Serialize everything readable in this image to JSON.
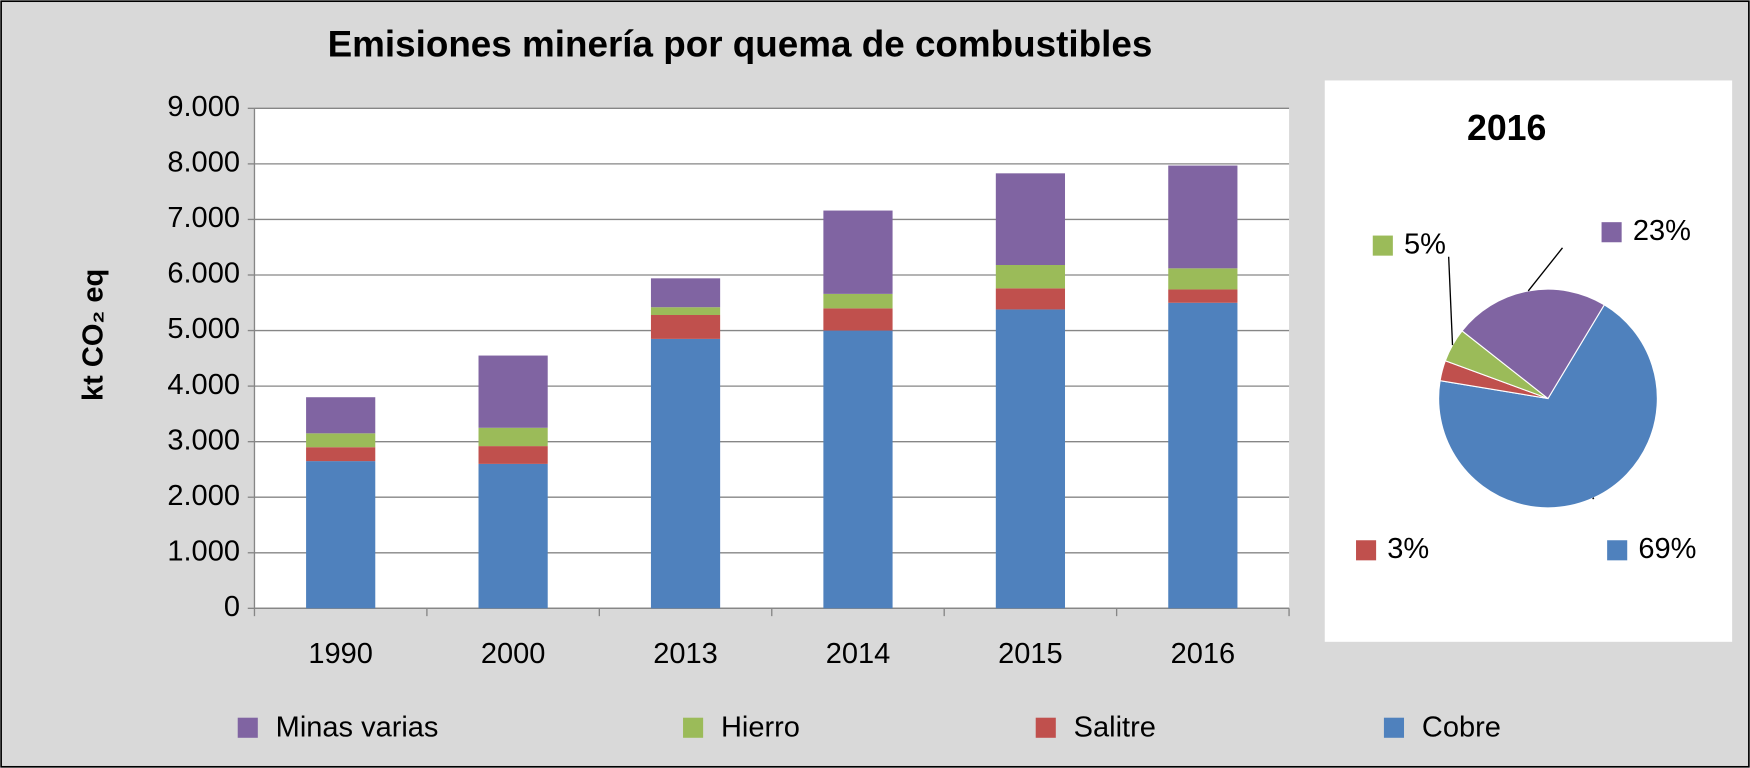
{
  "chart_data": [
    {
      "type": "bar",
      "stacked": true,
      "title": "Emisiones minería por quema de combustibles",
      "y_label": "kt CO₂ eq",
      "categories": [
        "1990",
        "2000",
        "2013",
        "2014",
        "2015",
        "2016"
      ],
      "series": [
        {
          "name": "Cobre",
          "color": "#4f81bd",
          "values": [
            2650,
            2600,
            4850,
            5000,
            5380,
            5500
          ]
        },
        {
          "name": "Salitre",
          "color": "#c0504d",
          "values": [
            250,
            320,
            430,
            400,
            380,
            240
          ]
        },
        {
          "name": "Hierro",
          "color": "#9bbb59",
          "values": [
            250,
            330,
            140,
            260,
            420,
            380
          ]
        },
        {
          "name": "Minas varias",
          "color": "#8064a2",
          "values": [
            650,
            1300,
            520,
            1500,
            1650,
            1850
          ]
        }
      ],
      "ylim": [
        0,
        9000
      ],
      "yticks": [
        0,
        {
          "value": 1000,
          "label": "1.000"
        },
        {
          "value": 2000,
          "label": "2.000"
        },
        {
          "value": 3000,
          "label": "3.000"
        },
        {
          "value": 4000,
          "label": "4.000"
        },
        {
          "value": 5000,
          "label": "5.000"
        },
        {
          "value": 6000,
          "label": "6.000"
        },
        {
          "value": 7000,
          "label": "7.000"
        },
        {
          "value": 8000,
          "label": "8.000"
        },
        {
          "value": 9000,
          "label": "9.000"
        }
      ],
      "grid": true,
      "legend": "bottom"
    },
    {
      "type": "pie",
      "title": "2016",
      "categories": [
        "Cobre",
        "Salitre",
        "Hierro",
        "Minas varias"
      ],
      "values": [
        69,
        3,
        5,
        23
      ],
      "value_labels": [
        "69%",
        "3%",
        "5%",
        "23%"
      ],
      "colors": [
        "#4f81bd",
        "#c0504d",
        "#9bbb59",
        "#8064a2"
      ]
    }
  ]
}
